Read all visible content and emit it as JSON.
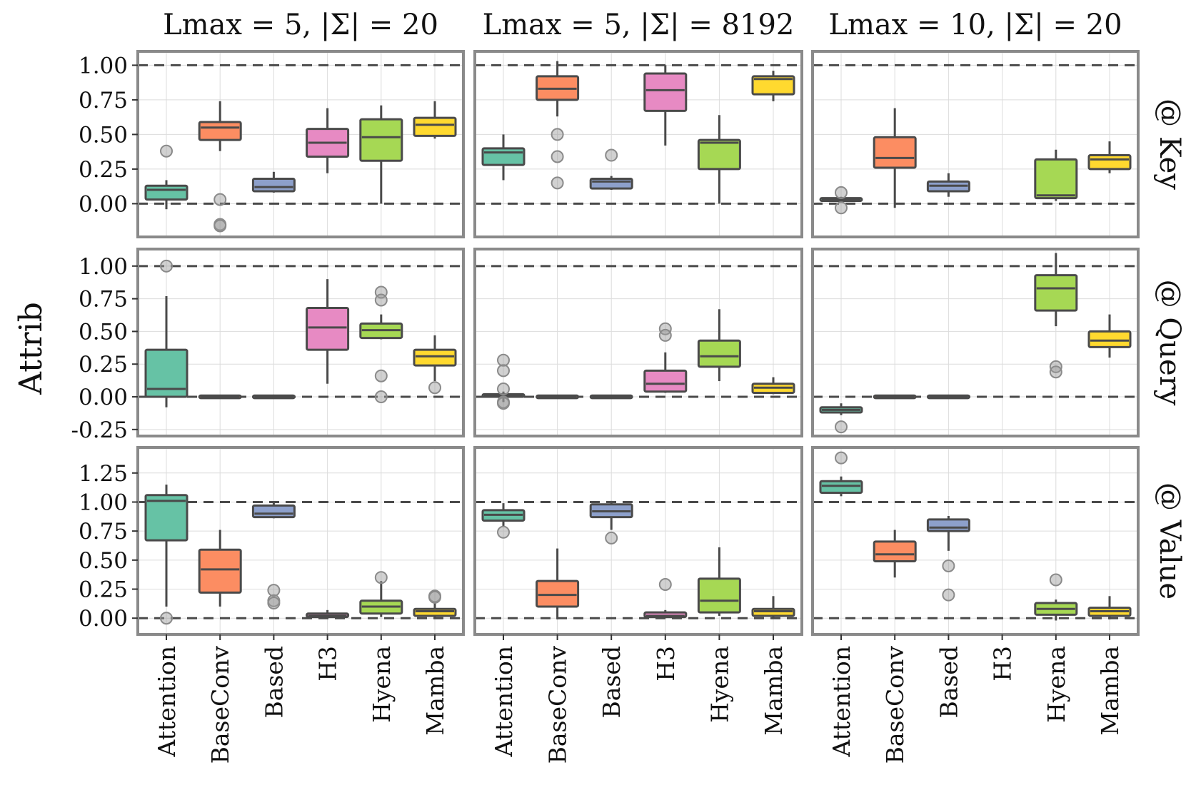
{
  "chart_data": {
    "type": "box",
    "ylabel": "Attrib",
    "categories": [
      "Attention",
      "BaseConv",
      "Based",
      "H3",
      "Hyena",
      "Mamba"
    ],
    "colors": {
      "Attention": "#66c2a5",
      "BaseConv": "#fc8d62",
      "Based": "#8da0cb",
      "H3": "#e78ac3",
      "Hyena": "#a6d854",
      "Mamba": "#ffd92f"
    },
    "columns": [
      {
        "id": "c1",
        "title": "Lmax = 5,  |Σ|  = 20"
      },
      {
        "id": "c2",
        "title": "Lmax = 5,  |Σ|  = 8192"
      },
      {
        "id": "c3",
        "title": "Lmax = 10,  |Σ|  = 20"
      }
    ],
    "rows": [
      {
        "id": "key",
        "label": "@ Key",
        "ylim": [
          -0.24,
          1.1
        ],
        "ticks": [
          0,
          0.25,
          0.5,
          0.75,
          1
        ],
        "tick_labels": [
          "0.00",
          "0.25",
          "0.50",
          "0.75",
          "1.00"
        ]
      },
      {
        "id": "query",
        "label": "@ Query",
        "ylim": [
          -0.3,
          1.13
        ],
        "ticks": [
          -0.25,
          0,
          0.25,
          0.5,
          0.75,
          1
        ],
        "tick_labels": [
          "-0.25",
          "0.00",
          "0.25",
          "0.50",
          "0.75",
          "1.00"
        ]
      },
      {
        "id": "value",
        "label": "@ Value",
        "ylim": [
          -0.14,
          1.47
        ],
        "ticks": [
          0,
          0.25,
          0.5,
          0.75,
          1,
          1.25
        ],
        "tick_labels": [
          "0.00",
          "0.25",
          "0.50",
          "0.75",
          "1.00",
          "1.25"
        ]
      }
    ],
    "reference_lines": [
      0,
      1
    ],
    "panels": {
      "key": {
        "c1": [
          {
            "cat": "Attention",
            "wlo": -0.04,
            "q1": 0.03,
            "med": 0.1,
            "q3": 0.13,
            "whi": 0.17,
            "fliers": [
              0.38
            ]
          },
          {
            "cat": "BaseConv",
            "wlo": 0.38,
            "q1": 0.46,
            "med": 0.55,
            "q3": 0.59,
            "whi": 0.74,
            "fliers": [
              0.03,
              -0.15,
              -0.16
            ]
          },
          {
            "cat": "Based",
            "wlo": 0.08,
            "q1": 0.09,
            "med": 0.12,
            "q3": 0.18,
            "whi": 0.23,
            "fliers": []
          },
          {
            "cat": "H3",
            "wlo": 0.22,
            "q1": 0.34,
            "med": 0.44,
            "q3": 0.54,
            "whi": 0.69,
            "fliers": []
          },
          {
            "cat": "Hyena",
            "wlo": 0.0,
            "q1": 0.31,
            "med": 0.48,
            "q3": 0.61,
            "whi": 0.71,
            "fliers": []
          },
          {
            "cat": "Mamba",
            "wlo": 0.47,
            "q1": 0.49,
            "med": 0.57,
            "q3": 0.62,
            "whi": 0.74,
            "fliers": []
          }
        ],
        "c2": [
          {
            "cat": "Attention",
            "wlo": 0.17,
            "q1": 0.28,
            "med": 0.37,
            "q3": 0.4,
            "whi": 0.5,
            "fliers": []
          },
          {
            "cat": "BaseConv",
            "wlo": 0.63,
            "q1": 0.75,
            "med": 0.83,
            "q3": 0.92,
            "whi": 1.03,
            "fliers": [
              0.5,
              0.34,
              0.15
            ]
          },
          {
            "cat": "Based",
            "wlo": 0.1,
            "q1": 0.11,
            "med": 0.16,
            "q3": 0.18,
            "whi": 0.2,
            "fliers": [
              0.35
            ]
          },
          {
            "cat": "H3",
            "wlo": 0.42,
            "q1": 0.67,
            "med": 0.82,
            "q3": 0.94,
            "whi": 1.0,
            "fliers": []
          },
          {
            "cat": "Hyena",
            "wlo": 0.0,
            "q1": 0.25,
            "med": 0.44,
            "q3": 0.46,
            "whi": 0.64,
            "fliers": []
          },
          {
            "cat": "Mamba",
            "wlo": 0.74,
            "q1": 0.79,
            "med": 0.9,
            "q3": 0.92,
            "whi": 0.96,
            "fliers": []
          }
        ],
        "c3": [
          {
            "cat": "Attention",
            "wlo": 0.01,
            "q1": 0.02,
            "med": 0.03,
            "q3": 0.04,
            "whi": 0.05,
            "fliers": [
              0.08,
              -0.03
            ]
          },
          {
            "cat": "BaseConv",
            "wlo": -0.03,
            "q1": 0.26,
            "med": 0.33,
            "q3": 0.48,
            "whi": 0.69,
            "fliers": []
          },
          {
            "cat": "Based",
            "wlo": 0.05,
            "q1": 0.09,
            "med": 0.13,
            "q3": 0.16,
            "whi": 0.22,
            "fliers": []
          },
          {
            "cat": "Hyena",
            "wlo": 0.02,
            "q1": 0.04,
            "med": 0.06,
            "q3": 0.32,
            "whi": 0.39,
            "fliers": []
          },
          {
            "cat": "Mamba",
            "wlo": 0.22,
            "q1": 0.25,
            "med": 0.32,
            "q3": 0.35,
            "whi": 0.45,
            "fliers": []
          }
        ]
      },
      "query": {
        "c1": [
          {
            "cat": "Attention",
            "wlo": -0.08,
            "q1": 0.0,
            "med": 0.06,
            "q3": 0.36,
            "whi": 0.77,
            "fliers": [
              1.0
            ]
          },
          {
            "cat": "BaseConv",
            "wlo": 0.0,
            "q1": -0.01,
            "med": 0.0,
            "q3": 0.01,
            "whi": 0.0,
            "fliers": []
          },
          {
            "cat": "Based",
            "wlo": 0.0,
            "q1": -0.01,
            "med": 0.0,
            "q3": 0.01,
            "whi": 0.0,
            "fliers": []
          },
          {
            "cat": "H3",
            "wlo": 0.1,
            "q1": 0.36,
            "med": 0.53,
            "q3": 0.68,
            "whi": 0.9,
            "fliers": []
          },
          {
            "cat": "Hyena",
            "wlo": 0.44,
            "q1": 0.45,
            "med": 0.51,
            "q3": 0.56,
            "whi": 0.63,
            "fliers": [
              0.8,
              0.74,
              0.16,
              0.0
            ]
          },
          {
            "cat": "Mamba",
            "wlo": 0.12,
            "q1": 0.24,
            "med": 0.31,
            "q3": 0.36,
            "whi": 0.47,
            "fliers": [
              0.07
            ]
          }
        ],
        "c2": [
          {
            "cat": "Attention",
            "wlo": -0.04,
            "q1": 0.0,
            "med": 0.01,
            "q3": 0.02,
            "whi": 0.04,
            "fliers": [
              0.28,
              0.2,
              0.06,
              -0.04,
              -0.05
            ]
          },
          {
            "cat": "BaseConv",
            "wlo": 0.0,
            "q1": -0.01,
            "med": 0.0,
            "q3": 0.01,
            "whi": 0.0,
            "fliers": []
          },
          {
            "cat": "Based",
            "wlo": 0.0,
            "q1": -0.01,
            "med": 0.0,
            "q3": 0.01,
            "whi": 0.0,
            "fliers": []
          },
          {
            "cat": "H3",
            "wlo": 0.03,
            "q1": 0.04,
            "med": 0.1,
            "q3": 0.2,
            "whi": 0.34,
            "fliers": [
              0.52,
              0.47
            ]
          },
          {
            "cat": "Hyena",
            "wlo": 0.12,
            "q1": 0.23,
            "med": 0.31,
            "q3": 0.43,
            "whi": 0.67,
            "fliers": []
          },
          {
            "cat": "Mamba",
            "wlo": 0.02,
            "q1": 0.03,
            "med": 0.07,
            "q3": 0.1,
            "whi": 0.15,
            "fliers": []
          }
        ],
        "c3": [
          {
            "cat": "Attention",
            "wlo": -0.14,
            "q1": -0.12,
            "med": -0.1,
            "q3": -0.08,
            "whi": -0.05,
            "fliers": [
              -0.23
            ]
          },
          {
            "cat": "BaseConv",
            "wlo": 0.0,
            "q1": -0.01,
            "med": 0.0,
            "q3": 0.01,
            "whi": 0.0,
            "fliers": []
          },
          {
            "cat": "Based",
            "wlo": 0.0,
            "q1": -0.01,
            "med": 0.0,
            "q3": 0.01,
            "whi": 0.0,
            "fliers": []
          },
          {
            "cat": "Hyena",
            "wlo": 0.54,
            "q1": 0.66,
            "med": 0.83,
            "q3": 0.93,
            "whi": 1.1,
            "fliers": [
              0.23,
              0.19
            ]
          },
          {
            "cat": "Mamba",
            "wlo": 0.3,
            "q1": 0.38,
            "med": 0.43,
            "q3": 0.5,
            "whi": 0.63,
            "fliers": []
          }
        ]
      },
      "value": {
        "c1": [
          {
            "cat": "Attention",
            "wlo": 0.1,
            "q1": 0.67,
            "med": 1.01,
            "q3": 1.06,
            "whi": 1.15,
            "fliers": [
              0.0
            ]
          },
          {
            "cat": "BaseConv",
            "wlo": 0.1,
            "q1": 0.22,
            "med": 0.42,
            "q3": 0.59,
            "whi": 0.76,
            "fliers": []
          },
          {
            "cat": "Based",
            "wlo": 0.86,
            "q1": 0.87,
            "med": 0.9,
            "q3": 0.97,
            "whi": 1.0,
            "fliers": [
              0.24,
              0.15,
              0.13
            ]
          },
          {
            "cat": "H3",
            "wlo": 0.0,
            "q1": 0.01,
            "med": 0.02,
            "q3": 0.04,
            "whi": 0.07,
            "fliers": []
          },
          {
            "cat": "Hyena",
            "wlo": 0.01,
            "q1": 0.04,
            "med": 0.1,
            "q3": 0.15,
            "whi": 0.32,
            "fliers": [
              0.35
            ]
          },
          {
            "cat": "Mamba",
            "wlo": 0.0,
            "q1": 0.02,
            "med": 0.06,
            "q3": 0.08,
            "whi": 0.14,
            "fliers": [
              0.19,
              0.18
            ]
          }
        ],
        "c2": [
          {
            "cat": "Attention",
            "wlo": 0.79,
            "q1": 0.84,
            "med": 0.89,
            "q3": 0.93,
            "whi": 0.99,
            "fliers": [
              0.74
            ]
          },
          {
            "cat": "BaseConv",
            "wlo": -0.01,
            "q1": 0.1,
            "med": 0.2,
            "q3": 0.32,
            "whi": 0.6,
            "fliers": []
          },
          {
            "cat": "Based",
            "wlo": 0.76,
            "q1": 0.87,
            "med": 0.92,
            "q3": 0.98,
            "whi": 1.01,
            "fliers": [
              0.69
            ]
          },
          {
            "cat": "H3",
            "wlo": 0.0,
            "q1": 0.01,
            "med": 0.02,
            "q3": 0.05,
            "whi": 0.07,
            "fliers": [
              0.29
            ]
          },
          {
            "cat": "Hyena",
            "wlo": 0.02,
            "q1": 0.05,
            "med": 0.15,
            "q3": 0.34,
            "whi": 0.61,
            "fliers": []
          },
          {
            "cat": "Mamba",
            "wlo": 0.0,
            "q1": 0.02,
            "med": 0.06,
            "q3": 0.08,
            "whi": 0.19,
            "fliers": []
          }
        ],
        "c3": [
          {
            "cat": "Attention",
            "wlo": 1.05,
            "q1": 1.08,
            "med": 1.14,
            "q3": 1.18,
            "whi": 1.22,
            "fliers": [
              1.38
            ]
          },
          {
            "cat": "BaseConv",
            "wlo": 0.35,
            "q1": 0.49,
            "med": 0.55,
            "q3": 0.66,
            "whi": 0.76,
            "fliers": []
          },
          {
            "cat": "Based",
            "wlo": 0.58,
            "q1": 0.75,
            "med": 0.78,
            "q3": 0.85,
            "whi": 0.88,
            "fliers": [
              0.45,
              0.2
            ]
          },
          {
            "cat": "Hyena",
            "wlo": -0.02,
            "q1": 0.03,
            "med": 0.08,
            "q3": 0.13,
            "whi": 0.16,
            "fliers": [
              0.33
            ]
          },
          {
            "cat": "Mamba",
            "wlo": -0.01,
            "q1": 0.02,
            "med": 0.06,
            "q3": 0.09,
            "whi": 0.19,
            "fliers": []
          }
        ]
      }
    }
  }
}
